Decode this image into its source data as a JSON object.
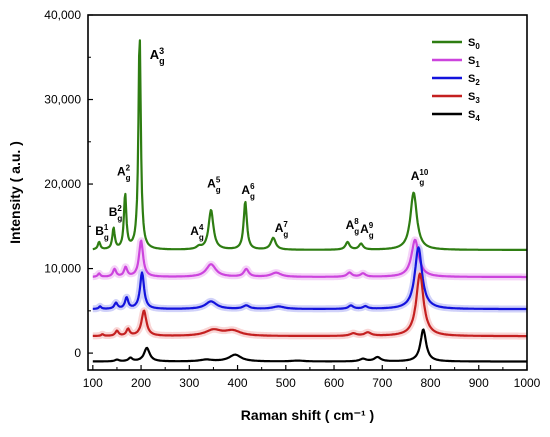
{
  "chart_data": {
    "type": "line",
    "xlabel": "Raman shift ( cm⁻¹ )",
    "ylabel": "Intensity ( a.u. )",
    "xlim": [
      90,
      1000
    ],
    "ylim": [
      -2000,
      40000
    ],
    "x_ticks": [
      100,
      200,
      300,
      400,
      500,
      600,
      700,
      800,
      900,
      1000
    ],
    "y_ticks": [
      0,
      10000,
      20000,
      30000,
      40000
    ],
    "y_tick_labels": [
      "0",
      "10,000",
      "20,000",
      "30,000",
      "40,000"
    ],
    "grid": false,
    "legend_position": "top-right",
    "series": [
      {
        "name": "S0",
        "label_main": "S",
        "label_sub": "0",
        "color": "#2e7d12",
        "baseline": 12200,
        "peaks": [
          {
            "x": 113,
            "height": 900,
            "width": 3
          },
          {
            "x": 143,
            "height": 2500,
            "width": 3
          },
          {
            "x": 167,
            "height": 6500,
            "width": 3
          },
          {
            "x": 197,
            "height": 25400,
            "width": 3
          },
          {
            "x": 320,
            "height": 300,
            "width": 6
          },
          {
            "x": 345,
            "height": 4700,
            "width": 6
          },
          {
            "x": 416,
            "height": 5700,
            "width": 4
          },
          {
            "x": 474,
            "height": 1400,
            "width": 6
          },
          {
            "x": 628,
            "height": 900,
            "width": 5
          },
          {
            "x": 656,
            "height": 700,
            "width": 5
          },
          {
            "x": 765,
            "height": 6800,
            "width": 8
          }
        ]
      },
      {
        "name": "S1",
        "label_main": "S",
        "label_sub": "1",
        "color": "#cc44dd",
        "baseline": 9000,
        "peaks": [
          {
            "x": 113,
            "height": 400,
            "width": 3
          },
          {
            "x": 145,
            "height": 900,
            "width": 4
          },
          {
            "x": 168,
            "height": 1100,
            "width": 4
          },
          {
            "x": 200,
            "height": 4300,
            "width": 5
          },
          {
            "x": 345,
            "height": 1500,
            "width": 12
          },
          {
            "x": 418,
            "height": 900,
            "width": 6
          },
          {
            "x": 480,
            "height": 500,
            "width": 12
          },
          {
            "x": 632,
            "height": 500,
            "width": 6
          },
          {
            "x": 660,
            "height": 400,
            "width": 6
          },
          {
            "x": 768,
            "height": 4400,
            "width": 9
          }
        ]
      },
      {
        "name": "S2",
        "label_main": "S",
        "label_sub": "2",
        "color": "#1313dd",
        "baseline": 5200,
        "peaks": [
          {
            "x": 115,
            "height": 300,
            "width": 3
          },
          {
            "x": 148,
            "height": 700,
            "width": 4
          },
          {
            "x": 170,
            "height": 1300,
            "width": 4
          },
          {
            "x": 202,
            "height": 4300,
            "width": 5
          },
          {
            "x": 345,
            "height": 900,
            "width": 14
          },
          {
            "x": 418,
            "height": 400,
            "width": 8
          },
          {
            "x": 485,
            "height": 300,
            "width": 15
          },
          {
            "x": 635,
            "height": 400,
            "width": 6
          },
          {
            "x": 665,
            "height": 300,
            "width": 6
          },
          {
            "x": 775,
            "height": 7300,
            "width": 9
          }
        ]
      },
      {
        "name": "S3",
        "label_main": "S",
        "label_sub": "3",
        "color": "#c42020",
        "baseline": 2000,
        "peaks": [
          {
            "x": 120,
            "height": 200,
            "width": 3
          },
          {
            "x": 150,
            "height": 600,
            "width": 4
          },
          {
            "x": 173,
            "height": 800,
            "width": 4
          },
          {
            "x": 206,
            "height": 3000,
            "width": 6
          },
          {
            "x": 350,
            "height": 700,
            "width": 20
          },
          {
            "x": 390,
            "height": 600,
            "width": 20
          },
          {
            "x": 640,
            "height": 300,
            "width": 8
          },
          {
            "x": 670,
            "height": 400,
            "width": 8
          },
          {
            "x": 778,
            "height": 7400,
            "width": 9
          }
        ]
      },
      {
        "name": "S4",
        "label_main": "S",
        "label_sub": "4",
        "color": "#000000",
        "baseline": -1000,
        "peaks": [
          {
            "x": 150,
            "height": 200,
            "width": 5
          },
          {
            "x": 178,
            "height": 400,
            "width": 5
          },
          {
            "x": 212,
            "height": 1600,
            "width": 7
          },
          {
            "x": 335,
            "height": 200,
            "width": 15
          },
          {
            "x": 395,
            "height": 800,
            "width": 15
          },
          {
            "x": 525,
            "height": 100,
            "width": 15
          },
          {
            "x": 660,
            "height": 300,
            "width": 8
          },
          {
            "x": 690,
            "height": 500,
            "width": 8
          },
          {
            "x": 785,
            "height": 3800,
            "width": 7
          }
        ]
      }
    ],
    "annotations": [
      {
        "main": "B",
        "sup": "1",
        "sub": "g",
        "x": 105,
        "y": 14000,
        "size": 12
      },
      {
        "main": "B",
        "sup": "2",
        "sub": "g",
        "x": 133,
        "y": 16200,
        "size": 12
      },
      {
        "main": "A",
        "sup": "2",
        "sub": "g",
        "x": 150,
        "y": 21000,
        "size": 12
      },
      {
        "main": "A",
        "sup": "3",
        "sub": "g",
        "x": 218,
        "y": 34800,
        "size": 13
      },
      {
        "main": "A",
        "sup": "4",
        "sub": "g",
        "x": 302,
        "y": 14000,
        "size": 12
      },
      {
        "main": "A",
        "sup": "5",
        "sub": "g",
        "x": 337,
        "y": 19600,
        "size": 12
      },
      {
        "main": "A",
        "sup": "6",
        "sub": "g",
        "x": 408,
        "y": 18800,
        "size": 12
      },
      {
        "main": "A",
        "sup": "7",
        "sub": "g",
        "x": 477,
        "y": 14300,
        "size": 12
      },
      {
        "main": "A",
        "sup": "8",
        "sub": "g",
        "x": 624,
        "y": 14700,
        "size": 12
      },
      {
        "main": "A",
        "sup": "9",
        "sub": "g",
        "x": 654,
        "y": 14200,
        "size": 12
      },
      {
        "main": "A",
        "sup": "10",
        "sub": "g",
        "x": 759,
        "y": 20500,
        "size": 12
      }
    ]
  }
}
